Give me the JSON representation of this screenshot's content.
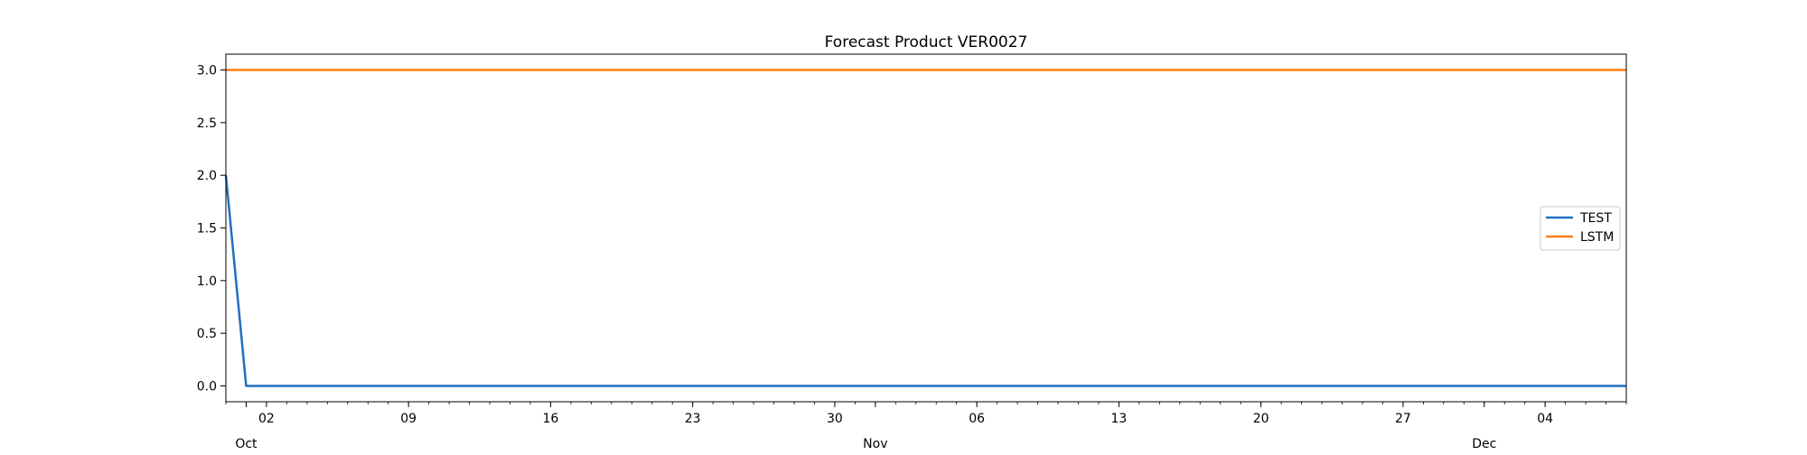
{
  "chart_data": {
    "type": "line",
    "title": "Forecast Product VER0027",
    "xlabel": "",
    "ylabel": "",
    "x_axis": {
      "type": "date",
      "range": [
        "2023-09-30",
        "2023-12-08"
      ],
      "ticks": [
        {
          "date": "2023-10-02",
          "label": "02"
        },
        {
          "date": "2023-10-09",
          "label": "09"
        },
        {
          "date": "2023-10-16",
          "label": "16"
        },
        {
          "date": "2023-10-23",
          "label": "23"
        },
        {
          "date": "2023-10-30",
          "label": "30"
        },
        {
          "date": "2023-11-06",
          "label": "06"
        },
        {
          "date": "2023-11-13",
          "label": "13"
        },
        {
          "date": "2023-11-20",
          "label": "20"
        },
        {
          "date": "2023-11-27",
          "label": "27"
        },
        {
          "date": "2023-12-04",
          "label": "04"
        }
      ],
      "month_labels": [
        {
          "date": "2023-10-01",
          "label": "Oct"
        },
        {
          "date": "2023-11-01",
          "label": "Nov"
        },
        {
          "date": "2023-12-01",
          "label": "Dec"
        }
      ]
    },
    "y_axis": {
      "range": [
        -0.15,
        3.15
      ],
      "ticks": [
        0.0,
        0.5,
        1.0,
        1.5,
        2.0,
        2.5,
        3.0
      ],
      "tick_labels": [
        "0.0",
        "0.5",
        "1.0",
        "1.5",
        "2.0",
        "2.5",
        "3.0"
      ]
    },
    "grid": false,
    "legend": {
      "placement": "center-right"
    },
    "series": [
      {
        "name": "TEST",
        "color": "#1f6fbf",
        "points": [
          {
            "x": "2023-09-30",
            "y": 2.0
          },
          {
            "x": "2023-10-01",
            "y": 0.0
          },
          {
            "x": "2023-12-08",
            "y": 0.0
          }
        ]
      },
      {
        "name": "LSTM",
        "color": "#ff7f0e",
        "points": [
          {
            "x": "2023-09-30",
            "y": 3.0
          },
          {
            "x": "2023-12-08",
            "y": 3.0
          }
        ]
      }
    ]
  }
}
